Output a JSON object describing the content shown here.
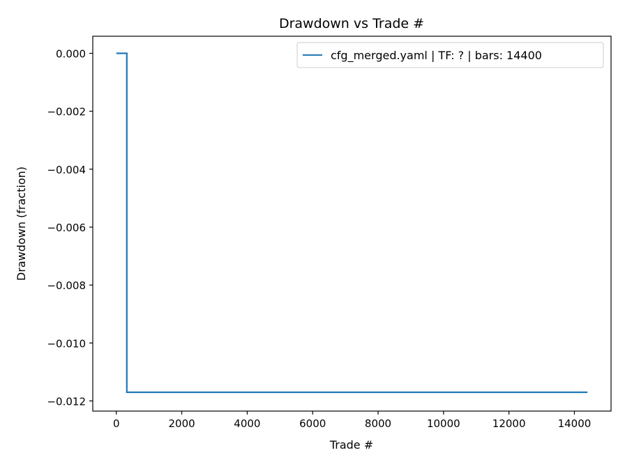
{
  "chart_data": {
    "type": "line",
    "title": "Drawdown vs Trade #",
    "xlabel": "Trade #",
    "ylabel": "Drawdown (fraction)",
    "xlim": [
      -720,
      15120
    ],
    "ylim": [
      -0.01235,
      0.00059
    ],
    "xticks": [
      0,
      2000,
      4000,
      6000,
      8000,
      10000,
      12000,
      14000
    ],
    "xtick_labels": [
      "0",
      "2000",
      "4000",
      "6000",
      "8000",
      "10000",
      "12000",
      "14000"
    ],
    "yticks": [
      0,
      -0.002,
      -0.004,
      -0.006,
      -0.008,
      -0.01,
      -0.012
    ],
    "ytick_labels": [
      "0.000",
      "−0.002",
      "−0.004",
      "−0.006",
      "−0.008",
      "−0.010",
      "−0.012"
    ],
    "grid": false,
    "legend_position": "top-right",
    "series": [
      {
        "name": "cfg_merged.yaml | TF: ? | bars: 14400",
        "color": "#1f77b4",
        "step": true,
        "x": [
          0,
          320,
          320,
          14400
        ],
        "y": [
          0,
          0,
          -0.0117,
          -0.0117
        ]
      }
    ]
  }
}
